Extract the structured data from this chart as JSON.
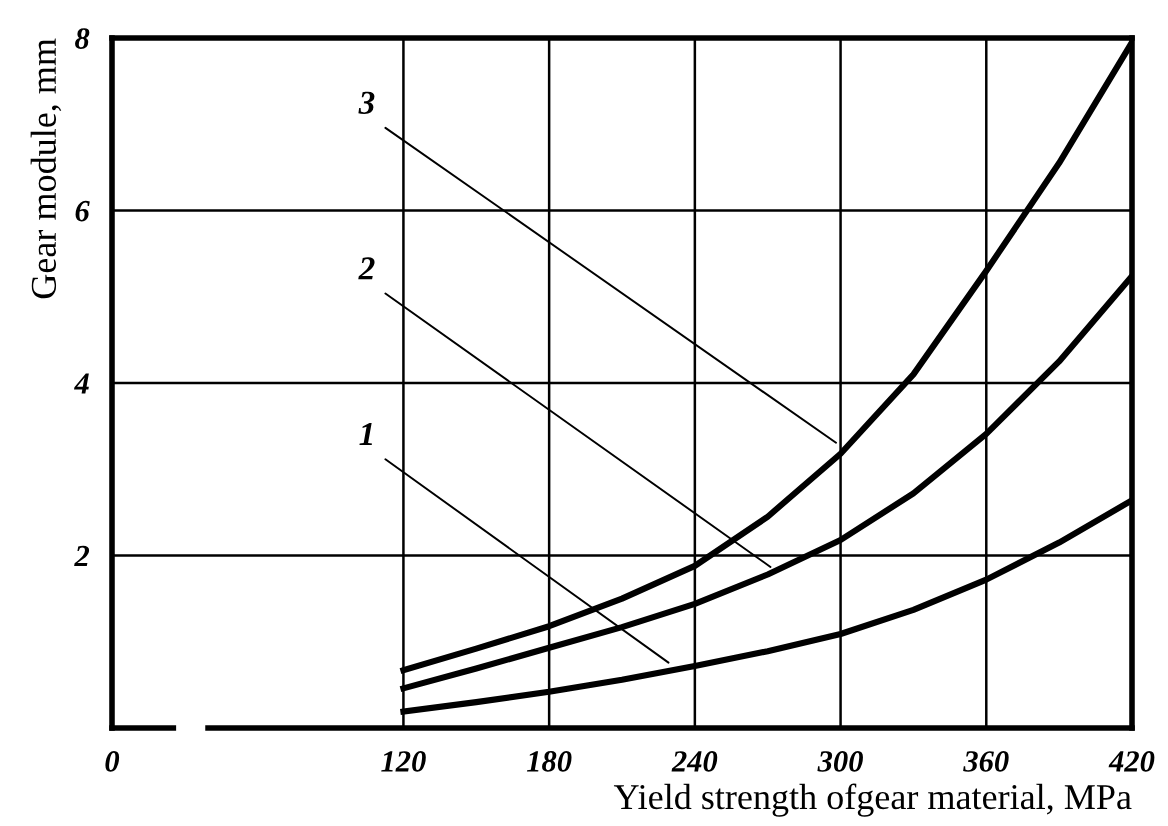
{
  "chart_data": {
    "type": "line",
    "xlabel": "Yield strength ofgear material, MPa",
    "ylabel": "Gear module, mm",
    "x": [
      120,
      150,
      180,
      210,
      240,
      270,
      300,
      330,
      360,
      390,
      420
    ],
    "series": [
      {
        "color": "#000000",
        "values": [
          0.19,
          0.3,
          0.42,
          0.56,
          0.72,
          0.89,
          1.09,
          1.37,
          1.72,
          2.15,
          2.64
        ]
      },
      {
        "color": "#000000",
        "values": [
          0.46,
          0.69,
          0.93,
          1.17,
          1.44,
          1.78,
          2.18,
          2.72,
          3.41,
          4.25,
          5.24
        ]
      },
      {
        "color": "#000000",
        "values": [
          0.67,
          0.92,
          1.18,
          1.5,
          1.88,
          2.45,
          3.18,
          4.1,
          5.3,
          6.55,
          7.95
        ]
      }
    ],
    "xlim": [
      0,
      420
    ],
    "xticks": [
      0,
      120,
      180,
      240,
      300,
      360,
      420
    ],
    "ylim": [
      0,
      8
    ],
    "yticks": [
      {
        "value": 0,
        "label": null
      },
      2,
      4,
      6,
      8
    ],
    "grid": true,
    "marker": "none",
    "line_style": "solid",
    "annotations": [
      {
        "text": "1",
        "x": 231,
        "y": 0.72
      },
      {
        "text": "2",
        "x": 273,
        "y": 1.83
      },
      {
        "text": "3",
        "x": 300,
        "y": 3.27
      }
    ]
  }
}
